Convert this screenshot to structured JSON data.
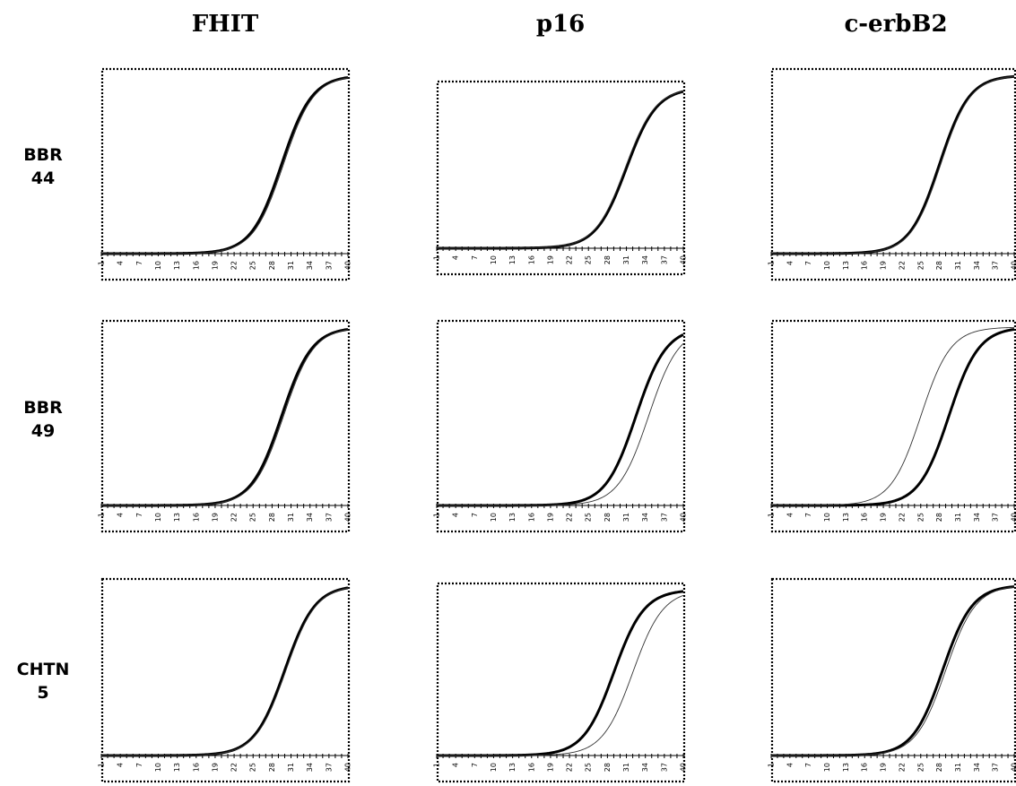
{
  "columns": [
    "FHIT",
    "p16",
    "c-erbB2"
  ],
  "rows": [
    {
      "line1": "BBR",
      "line2": "44"
    },
    {
      "line1": "BBR",
      "line2": "49"
    },
    {
      "line1": "CHTN",
      "line2": "5"
    }
  ],
  "chart_data": [
    {
      "type": "line",
      "row": "BBR 44",
      "column": "FHIT",
      "x_tick_labels": [
        "1",
        "4",
        "7",
        "10",
        "13",
        "16",
        "19",
        "22",
        "25",
        "28",
        "31",
        "34",
        "37",
        "40"
      ],
      "xlim": [
        1,
        40
      ],
      "ylim": [
        0,
        1
      ],
      "series": [
        {
          "style": "bold",
          "midpoint_cycle": 29.5
        },
        {
          "style": "thin",
          "midpoint_cycle": 29.8
        }
      ]
    },
    {
      "type": "line",
      "row": "BBR 44",
      "column": "p16",
      "x_tick_labels": [
        "1",
        "4",
        "7",
        "10",
        "13",
        "16",
        "19",
        "22",
        "25",
        "28",
        "31",
        "34",
        "37",
        "40"
      ],
      "xlim": [
        1,
        40
      ],
      "ylim": [
        0,
        1
      ],
      "series": [
        {
          "style": "bold",
          "midpoint_cycle": 31.0
        },
        {
          "style": "thin",
          "midpoint_cycle": 30.8
        }
      ]
    },
    {
      "type": "line",
      "row": "BBR 44",
      "column": "c-erbB2",
      "x_tick_labels": [
        "1",
        "4",
        "7",
        "10",
        "13",
        "16",
        "19",
        "22",
        "25",
        "28",
        "31",
        "34",
        "37",
        "40"
      ],
      "xlim": [
        1,
        40
      ],
      "ylim": [
        0,
        1
      ],
      "series": [
        {
          "style": "bold",
          "midpoint_cycle": 28.0
        },
        {
          "style": "thin",
          "midpoint_cycle": 28.2
        }
      ]
    },
    {
      "type": "line",
      "row": "BBR 49",
      "column": "FHIT",
      "x_tick_labels": [
        "1",
        "4",
        "7",
        "10",
        "13",
        "16",
        "19",
        "22",
        "25",
        "28",
        "31",
        "34",
        "37",
        "40"
      ],
      "xlim": [
        1,
        40
      ],
      "ylim": [
        0,
        1
      ],
      "series": [
        {
          "style": "bold",
          "midpoint_cycle": 29.5
        },
        {
          "style": "thin",
          "midpoint_cycle": 29.8
        }
      ]
    },
    {
      "type": "line",
      "row": "BBR 49",
      "column": "p16",
      "x_tick_labels": [
        "1",
        "4",
        "7",
        "10",
        "13",
        "16",
        "19",
        "22",
        "25",
        "28",
        "31",
        "34",
        "37",
        "40"
      ],
      "xlim": [
        1,
        40
      ],
      "ylim": [
        0,
        1
      ],
      "series": [
        {
          "style": "bold",
          "midpoint_cycle": 32.5
        },
        {
          "style": "thin",
          "midpoint_cycle": 34.5
        }
      ]
    },
    {
      "type": "line",
      "row": "BBR 49",
      "column": "c-erbB2",
      "x_tick_labels": [
        "1",
        "4",
        "7",
        "10",
        "13",
        "16",
        "19",
        "22",
        "25",
        "28",
        "31",
        "34",
        "37",
        "40"
      ],
      "xlim": [
        1,
        40
      ],
      "ylim": [
        0,
        1
      ],
      "series": [
        {
          "style": "bold",
          "midpoint_cycle": 29.5
        },
        {
          "style": "thin",
          "midpoint_cycle": 25.0
        }
      ]
    },
    {
      "type": "line",
      "row": "CHTN 5",
      "column": "FHIT",
      "x_tick_labels": [
        "1",
        "4",
        "7",
        "10",
        "13",
        "16",
        "19",
        "22",
        "25",
        "28",
        "31",
        "34",
        "37",
        "40"
      ],
      "xlim": [
        1,
        40
      ],
      "ylim": [
        0,
        1
      ],
      "series": [
        {
          "style": "bold",
          "midpoint_cycle": 30.0
        },
        {
          "style": "thin",
          "midpoint_cycle": 30.2
        }
      ]
    },
    {
      "type": "line",
      "row": "CHTN 5",
      "column": "p16",
      "x_tick_labels": [
        "1",
        "4",
        "7",
        "10",
        "13",
        "16",
        "19",
        "22",
        "25",
        "28",
        "31",
        "34",
        "37",
        "40"
      ],
      "xlim": [
        1,
        40
      ],
      "ylim": [
        0,
        1
      ],
      "series": [
        {
          "style": "bold",
          "midpoint_cycle": 29.0
        },
        {
          "style": "thin",
          "midpoint_cycle": 32.0
        }
      ]
    },
    {
      "type": "line",
      "row": "CHTN 5",
      "column": "c-erbB2",
      "x_tick_labels": [
        "1",
        "4",
        "7",
        "10",
        "13",
        "16",
        "19",
        "22",
        "25",
        "28",
        "31",
        "34",
        "37",
        "40"
      ],
      "xlim": [
        1,
        40
      ],
      "ylim": [
        0,
        1
      ],
      "series": [
        {
          "style": "bold",
          "midpoint_cycle": 28.5
        },
        {
          "style": "thin",
          "midpoint_cycle": 29.0
        }
      ]
    }
  ]
}
